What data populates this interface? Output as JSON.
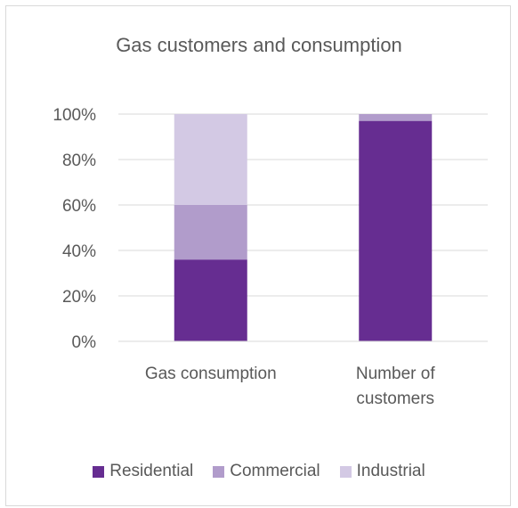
{
  "chart_data": {
    "type": "bar",
    "stacked": true,
    "title": "Gas customers and consumption",
    "categories": [
      [
        "Gas consumption"
      ],
      [
        "Number of",
        "customers"
      ]
    ],
    "series": [
      {
        "name": "Residential",
        "color": "#662d91",
        "values": [
          36,
          97
        ]
      },
      {
        "name": "Commercial",
        "color": "#b19ccb",
        "values": [
          24,
          3
        ]
      },
      {
        "name": "Industrial",
        "color": "#d3c9e4",
        "values": [
          40,
          0
        ]
      }
    ],
    "y_ticks": [
      "0%",
      "20%",
      "40%",
      "60%",
      "80%",
      "100%"
    ],
    "ylim": [
      0,
      100
    ],
    "grid": true,
    "legend_position": "bottom"
  }
}
